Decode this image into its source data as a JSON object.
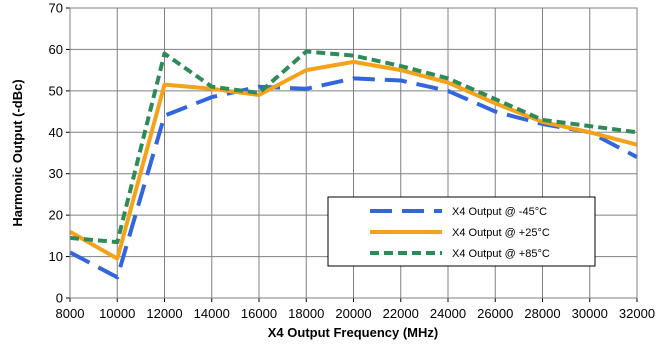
{
  "chart_data": {
    "type": "line",
    "xlabel": "X4 Output Frequency (MHz)",
    "ylabel": "Harmonic Output (-dBc)",
    "xlim": [
      8000,
      32000
    ],
    "ylim": [
      0,
      70
    ],
    "x_ticks": [
      8000,
      10000,
      12000,
      14000,
      16000,
      18000,
      20000,
      22000,
      24000,
      26000,
      28000,
      30000,
      32000
    ],
    "y_ticks": [
      0,
      10,
      20,
      30,
      40,
      50,
      60,
      70
    ],
    "grid": true,
    "legend_position": "bottom-right",
    "series": [
      {
        "name": "X4 Output @ -45°C",
        "color": "#3366dd",
        "dash": "long-dash",
        "x": [
          8000,
          10000,
          12000,
          14000,
          16000,
          18000,
          20000,
          22000,
          24000,
          26000,
          28000,
          30000,
          32000
        ],
        "y": [
          11,
          5,
          44,
          48.5,
          51,
          50.5,
          53,
          52.5,
          50,
          45,
          42,
          40,
          34
        ]
      },
      {
        "name": "X4 Output @ +25°C",
        "color": "#f5a21b",
        "dash": "solid",
        "x": [
          8000,
          10000,
          12000,
          14000,
          16000,
          18000,
          20000,
          22000,
          24000,
          26000,
          28000,
          30000,
          32000
        ],
        "y": [
          16,
          9.5,
          51.5,
          50.5,
          49,
          55,
          57,
          55,
          52,
          47,
          42.5,
          40,
          37
        ]
      },
      {
        "name": "X4 Output @ +85°C",
        "color": "#2e8b57",
        "dash": "short-dash",
        "x": [
          8000,
          10000,
          12000,
          14000,
          16000,
          18000,
          20000,
          22000,
          24000,
          26000,
          28000,
          30000,
          32000
        ],
        "y": [
          14.5,
          13.5,
          59,
          51,
          49.5,
          59.5,
          58.5,
          56,
          53,
          48,
          43,
          41.5,
          40
        ]
      }
    ]
  }
}
